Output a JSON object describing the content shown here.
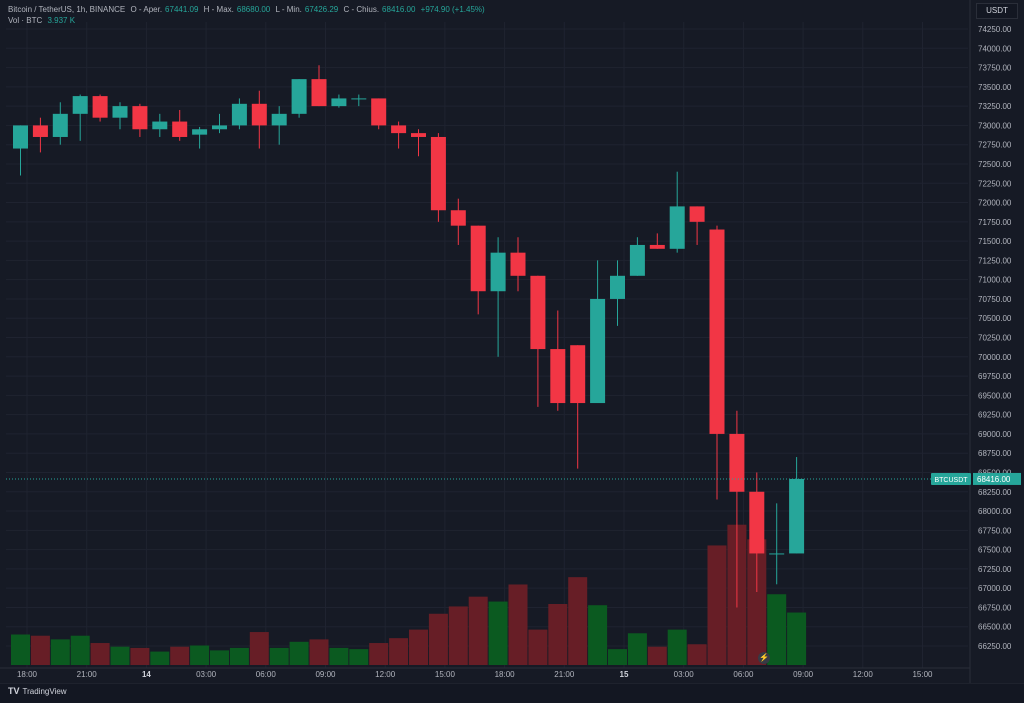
{
  "legend": {
    "symbol": "Bitcoin / TetherUS, 1h, BINANCE",
    "open_label": "O - Aper.",
    "open_value": "67441.09",
    "high_label": "H - Max.",
    "high_value": "68680.00",
    "low_label": "L - Min.",
    "low_value": "67426.29",
    "close_label": "C - Chius.",
    "close_value": "68416.00",
    "change": "+974.90 (+1.45%)",
    "volume_label": "Vol · BTC",
    "volume_value": "3.937 K"
  },
  "unit": "USDT",
  "price_tag": {
    "label": "BTCUSDT",
    "value": "68416.00"
  },
  "branding": "TradingView",
  "colors": {
    "up": "#26a69a",
    "down": "#f23645",
    "vol_up": "#0b5e20",
    "vol_down": "#6b1f26",
    "grid": "#1f2330",
    "background": "#161a25"
  },
  "chart_data": {
    "type": "candlestick",
    "ylim": [
      66000,
      74500
    ],
    "y_ticks": [
      "74250.00",
      "74000.00",
      "73750.00",
      "73500.00",
      "73250.00",
      "73000.00",
      "72750.00",
      "72500.00",
      "72250.00",
      "72000.00",
      "71750.00",
      "71500.00",
      "71250.00",
      "71000.00",
      "70750.00",
      "70500.00",
      "70250.00",
      "70000.00",
      "69750.00",
      "69500.00",
      "69250.00",
      "69000.00",
      "68750.00",
      "68500.00",
      "68250.00",
      "68000.00",
      "67750.00",
      "67500.00",
      "67250.00",
      "67000.00",
      "66750.00",
      "66500.00",
      "66250.00"
    ],
    "x_ticks": [
      "18:00",
      "21:00",
      "14",
      "03:00",
      "06:00",
      "09:00",
      "12:00",
      "15:00",
      "18:00",
      "21:00",
      "15",
      "03:00",
      "06:00",
      "09:00",
      "12:00",
      "15:00"
    ],
    "candles": [
      {
        "o": 72700,
        "h": 73000,
        "l": 72350,
        "c": 73000,
        "v": 25
      },
      {
        "o": 73000,
        "h": 73100,
        "l": 72650,
        "c": 72850,
        "v": 24
      },
      {
        "o": 72850,
        "h": 73300,
        "l": 72750,
        "c": 73150,
        "v": 21
      },
      {
        "o": 73150,
        "h": 73400,
        "l": 72800,
        "c": 73380,
        "v": 24
      },
      {
        "o": 73380,
        "h": 73400,
        "l": 73050,
        "c": 73100,
        "v": 18
      },
      {
        "o": 73100,
        "h": 73300,
        "l": 72950,
        "c": 73250,
        "v": 15
      },
      {
        "o": 73250,
        "h": 73280,
        "l": 72850,
        "c": 72950,
        "v": 14
      },
      {
        "o": 72950,
        "h": 73150,
        "l": 72850,
        "c": 73050,
        "v": 11
      },
      {
        "o": 73050,
        "h": 73200,
        "l": 72800,
        "c": 72850,
        "v": 15
      },
      {
        "o": 72880,
        "h": 72980,
        "l": 72700,
        "c": 72950,
        "v": 16
      },
      {
        "o": 72950,
        "h": 73150,
        "l": 72900,
        "c": 73000,
        "v": 12
      },
      {
        "o": 73000,
        "h": 73350,
        "l": 72950,
        "c": 73280,
        "v": 14
      },
      {
        "o": 73280,
        "h": 73450,
        "l": 72700,
        "c": 73000,
        "v": 27
      },
      {
        "o": 73000,
        "h": 73250,
        "l": 72750,
        "c": 73150,
        "v": 14
      },
      {
        "o": 73150,
        "h": 73600,
        "l": 73100,
        "c": 73600,
        "v": 19
      },
      {
        "o": 73600,
        "h": 73780,
        "l": 73250,
        "c": 73250,
        "v": 21
      },
      {
        "o": 73250,
        "h": 73400,
        "l": 73230,
        "c": 73350,
        "v": 14
      },
      {
        "o": 73350,
        "h": 73400,
        "l": 73250,
        "c": 73350,
        "v": 13
      },
      {
        "o": 73350,
        "h": 73350,
        "l": 72950,
        "c": 73000,
        "v": 18
      },
      {
        "o": 73000,
        "h": 73050,
        "l": 72700,
        "c": 72900,
        "v": 22
      },
      {
        "o": 72900,
        "h": 72950,
        "l": 72600,
        "c": 72850,
        "v": 29
      },
      {
        "o": 72850,
        "h": 72900,
        "l": 71750,
        "c": 71900,
        "v": 42
      },
      {
        "o": 71900,
        "h": 72050,
        "l": 71450,
        "c": 71700,
        "v": 48
      },
      {
        "o": 71700,
        "h": 71700,
        "l": 70550,
        "c": 70850,
        "v": 56
      },
      {
        "o": 70850,
        "h": 71550,
        "l": 70000,
        "c": 71350,
        "v": 52
      },
      {
        "o": 71350,
        "h": 71550,
        "l": 70850,
        "c": 71050,
        "v": 66
      },
      {
        "o": 71050,
        "h": 71050,
        "l": 69350,
        "c": 70100,
        "v": 29
      },
      {
        "o": 70100,
        "h": 70600,
        "l": 69300,
        "c": 69400,
        "v": 50
      },
      {
        "o": 70150,
        "h": 70150,
        "l": 68550,
        "c": 69400,
        "v": 72
      },
      {
        "o": 69400,
        "h": 71250,
        "l": 69400,
        "c": 70750,
        "v": 49
      },
      {
        "o": 70750,
        "h": 71250,
        "l": 70400,
        "c": 71050,
        "v": 13
      },
      {
        "o": 71050,
        "h": 71550,
        "l": 71050,
        "c": 71450,
        "v": 26
      },
      {
        "o": 71450,
        "h": 71600,
        "l": 71400,
        "c": 71400,
        "v": 15
      },
      {
        "o": 71400,
        "h": 72400,
        "l": 71350,
        "c": 71950,
        "v": 29
      },
      {
        "o": 71950,
        "h": 71950,
        "l": 71450,
        "c": 71750,
        "v": 17
      },
      {
        "o": 71650,
        "h": 71700,
        "l": 68150,
        "c": 69000,
        "v": 98
      },
      {
        "o": 69000,
        "h": 69300,
        "l": 66750,
        "c": 68250,
        "v": 115
      },
      {
        "o": 68250,
        "h": 68500,
        "l": 66950,
        "c": 67450,
        "v": 103
      },
      {
        "o": 67450,
        "h": 68100,
        "l": 67050,
        "c": 67450,
        "v": 58
      },
      {
        "o": 67450,
        "h": 68700,
        "l": 67450,
        "c": 68416,
        "v": 43
      }
    ]
  }
}
